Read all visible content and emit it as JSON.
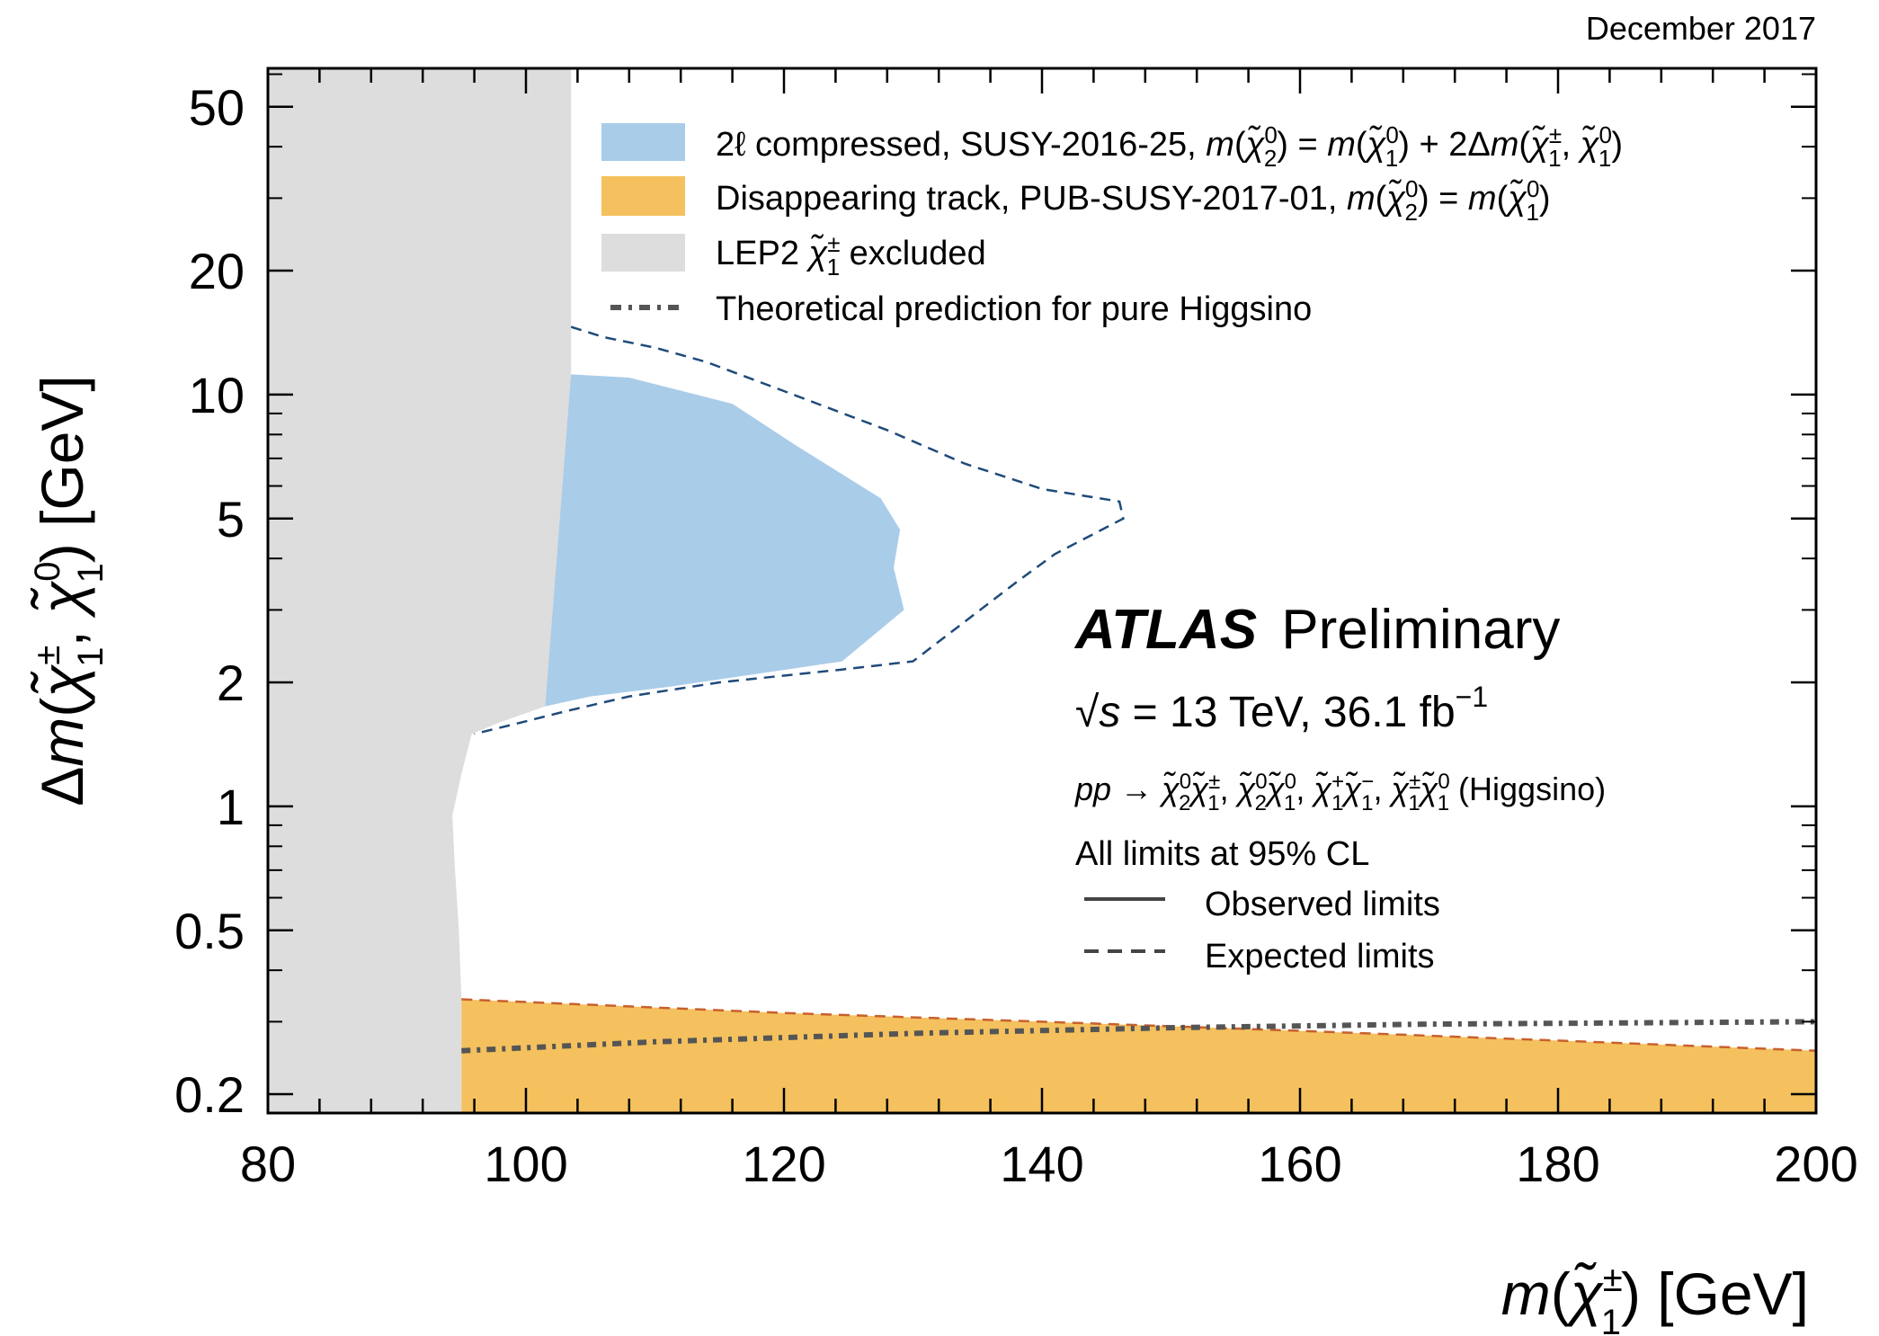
{
  "date_label": "December 2017",
  "chart_data": {
    "type": "area",
    "title": "",
    "xlabel": "m(χ̃₁^±) [GeV]",
    "ylabel": "Δm(χ̃₁^±, χ̃₁⁰) [GeV]",
    "xlim": [
      80,
      200
    ],
    "ylim": [
      0.18,
      62
    ],
    "yscale": "log",
    "x_ticks": [
      80,
      100,
      120,
      140,
      160,
      180,
      200
    ],
    "y_ticks": [
      0.2,
      0.5,
      1,
      2,
      5,
      10,
      20,
      50
    ],
    "y_tick_labels": [
      "0.2",
      "0.5",
      "1",
      "2",
      "5",
      "10",
      "20",
      "50"
    ],
    "colors": {
      "blue": "#a9cce9",
      "orange": "#f4c15e",
      "grey": "#dddddd",
      "expected_blue": "#1f4a7a",
      "expected_orange": "#c8602e",
      "theory": "#555555"
    },
    "series": [
      {
        "name": "LEP2 χ̃₁^± excluded",
        "kind": "excluded_region",
        "boundary": [
          [
            103.5,
            62
          ],
          [
            103.5,
            5.2
          ],
          [
            103.0,
            4.9
          ],
          [
            102.6,
            3.6
          ],
          [
            102.2,
            3.0
          ],
          [
            102.8,
            2.4
          ],
          [
            101.5,
            1.75
          ],
          [
            98.0,
            1.6
          ],
          [
            95.8,
            1.5
          ],
          [
            95.0,
            1.2
          ],
          [
            94.3,
            0.95
          ],
          [
            94.5,
            0.7
          ],
          [
            94.8,
            0.5
          ],
          [
            95.0,
            0.34
          ],
          [
            95.0,
            0.18
          ]
        ]
      },
      {
        "name": "2ℓ compressed, SUSY-2016-25, m(χ̃₂⁰) = m(χ̃₁⁰) + 2Δm(χ̃₁^±, χ̃₁⁰)",
        "kind": "observed_region",
        "boundary": [
          [
            103.5,
            11.2
          ],
          [
            108,
            11.0
          ],
          [
            116,
            9.5
          ],
          [
            121,
            7.5
          ],
          [
            127.5,
            5.6
          ],
          [
            129,
            4.7
          ],
          [
            128.5,
            3.8
          ],
          [
            129.3,
            3.0
          ],
          [
            124.5,
            2.25
          ],
          [
            111,
            1.95
          ],
          [
            105,
            1.85
          ],
          [
            101.5,
            1.75
          ]
        ]
      },
      {
        "name": "2ℓ compressed expected",
        "kind": "expected_line",
        "points": [
          [
            103.5,
            14.6
          ],
          [
            106,
            13.8
          ],
          [
            110,
            13.0
          ],
          [
            114,
            12.0
          ],
          [
            120,
            10.2
          ],
          [
            128,
            8.2
          ],
          [
            134,
            6.8
          ],
          [
            140,
            5.9
          ],
          [
            146,
            5.5
          ],
          [
            146.3,
            5.0
          ],
          [
            141,
            4.1
          ],
          [
            138,
            3.5
          ],
          [
            130,
            2.25
          ],
          [
            124.5,
            2.15
          ],
          [
            115,
            2.0
          ],
          [
            108,
            1.85
          ],
          [
            103,
            1.7
          ],
          [
            99,
            1.58
          ],
          [
            96,
            1.5
          ]
        ]
      },
      {
        "name": "Disappearing track, PUB-SUSY-2017-01, m(χ̃₂⁰) = m(χ̃₁⁰)",
        "kind": "observed_region",
        "boundary": [
          [
            95,
            0.34
          ],
          [
            120,
            0.315
          ],
          [
            140,
            0.3
          ],
          [
            160,
            0.285
          ],
          [
            180,
            0.27
          ],
          [
            200,
            0.255
          ],
          [
            200,
            0.18
          ],
          [
            95,
            0.18
          ]
        ]
      },
      {
        "name": "Disappearing track expected",
        "kind": "expected_line",
        "points": [
          [
            95,
            0.34
          ],
          [
            120,
            0.315
          ],
          [
            140,
            0.3
          ],
          [
            160,
            0.285
          ],
          [
            180,
            0.27
          ],
          [
            200,
            0.255
          ]
        ]
      },
      {
        "name": "Theoretical prediction for pure Higgsino",
        "kind": "theory_line",
        "points": [
          [
            95,
            0.255
          ],
          [
            110,
            0.268
          ],
          [
            130,
            0.281
          ],
          [
            150,
            0.29
          ],
          [
            170,
            0.296
          ],
          [
            200,
            0.3
          ]
        ]
      }
    ],
    "legend": {
      "placement": "top-right",
      "entries": [
        {
          "label": "2ℓ compressed, SUSY-2016-25, m(χ̃₂⁰) = m(χ̃₁⁰) + 2Δm(χ̃₁^±, χ̃₁⁰)",
          "style": "blue"
        },
        {
          "label": "Disappearing track, PUB-SUSY-2017-01, m(χ̃₂⁰) = m(χ̃₁⁰)",
          "style": "orange"
        },
        {
          "label": "LEP2 χ̃₁^± excluded",
          "style": "grey"
        },
        {
          "label": "Theoretical prediction for pure Higgsino",
          "style": "theory"
        }
      ]
    },
    "annotations": {
      "atlas": "ATLAS",
      "preliminary": "Preliminary",
      "energy": "√s = 13 TeV, 36.1 fb⁻¹",
      "process": "pp → χ̃₂⁰χ̃₁^±, χ̃₂⁰χ̃₁⁰, χ̃₁⁺χ̃₁⁻, χ̃₁^±χ̃₁⁰ (Higgsino)",
      "cl": "All limits at 95% CL",
      "observed": "Observed limits",
      "expected": "Expected limits"
    }
  }
}
